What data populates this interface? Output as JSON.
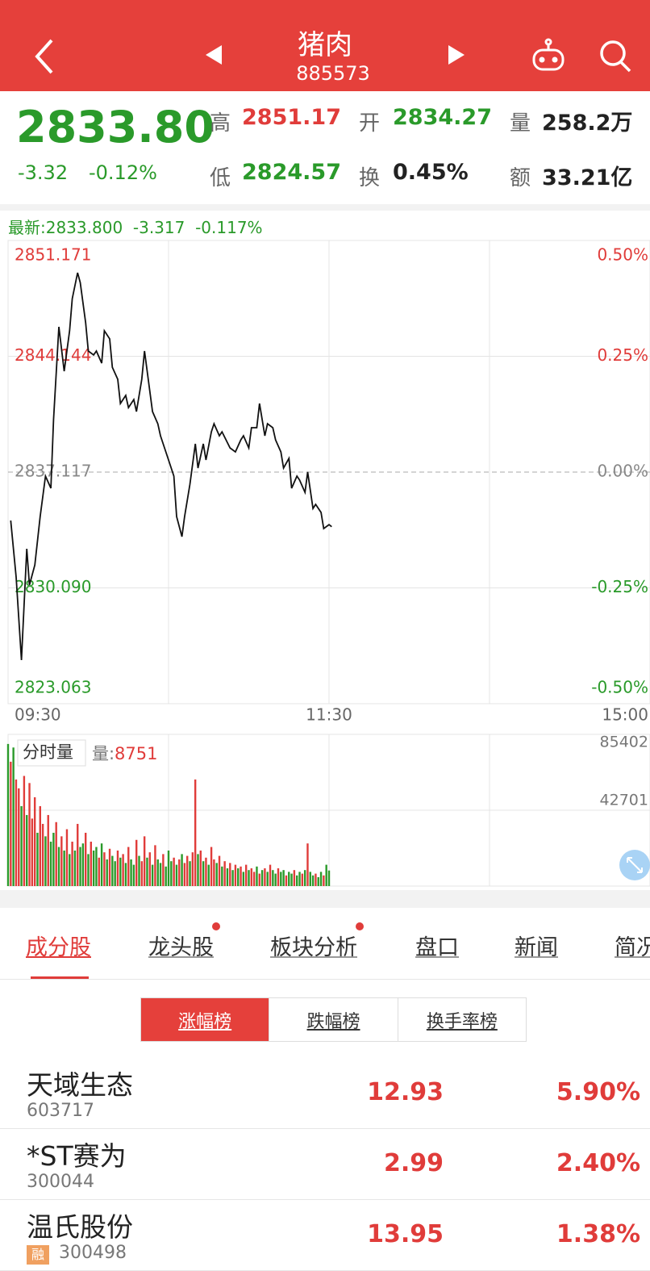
{
  "header": {
    "title": "猪肉",
    "code": "885573"
  },
  "quote": {
    "price": "2833.80",
    "change": "-3.32",
    "change_pct": "-0.12%",
    "fields": [
      {
        "label": "高",
        "value": "2851.17"
      },
      {
        "label": "开",
        "value": "2834.27"
      },
      {
        "label": "量",
        "value": "258.2万"
      },
      {
        "label": "低",
        "value": "2824.57"
      },
      {
        "label": "换",
        "value": "0.45%"
      },
      {
        "label": "额",
        "value": "33.21亿"
      }
    ]
  },
  "chart_data": [
    {
      "type": "line",
      "subtitle": "最新:2833.800  -3.317  -0.117%",
      "color": "#111111",
      "x": [
        1,
        3,
        5,
        7,
        8,
        10,
        12,
        14,
        16,
        17,
        19,
        21,
        23,
        24,
        26,
        27,
        29,
        30,
        32,
        33,
        35,
        36,
        38,
        39,
        41,
        42,
        44,
        45,
        47,
        48,
        50,
        51,
        52,
        54,
        56,
        57,
        60,
        62,
        63,
        65,
        66,
        68,
        70,
        71,
        73,
        74,
        76,
        77,
        79,
        80,
        83,
        85,
        87,
        88,
        90,
        91,
        93,
        94,
        96,
        97,
        99,
        100,
        102,
        103,
        105,
        106,
        108,
        109,
        111,
        112,
        114,
        115,
        117,
        118,
        120,
        121
      ],
      "values": [
        2834.18,
        2830.75,
        2825.71,
        2832.46,
        2830.26,
        2831.48,
        2834.42,
        2836.87,
        2836.14,
        2840.3,
        2845.93,
        2843.24,
        2845.69,
        2847.64,
        2849.21,
        2848.62,
        2846.18,
        2844.46,
        2844.22,
        2844.46,
        2843.73,
        2845.69,
        2845.2,
        2843.48,
        2842.75,
        2841.28,
        2841.77,
        2841.03,
        2841.52,
        2840.79,
        2842.75,
        2844.46,
        2843.24,
        2840.79,
        2840.05,
        2839.32,
        2837.85,
        2836.87,
        2834.42,
        2833.2,
        2834.42,
        2836.38,
        2838.83,
        2837.36,
        2838.83,
        2837.85,
        2839.56,
        2840.05,
        2839.32,
        2839.56,
        2838.58,
        2838.34,
        2839.07,
        2839.32,
        2838.58,
        2839.81,
        2839.81,
        2841.28,
        2839.32,
        2840.05,
        2839.81,
        2839.07,
        2838.34,
        2837.36,
        2837.95,
        2836.14,
        2836.87,
        2836.63,
        2835.89,
        2837.12,
        2834.91,
        2835.16,
        2834.67,
        2833.69,
        2833.93,
        2833.8
      ],
      "xlim": [
        0,
        240
      ],
      "xticks": [
        {
          "value": 0,
          "label": "09:30"
        },
        {
          "value": 120,
          "label": "11:30"
        },
        {
          "value": 240,
          "label": "15:00"
        }
      ],
      "xgrid": [
        60,
        120,
        180
      ],
      "ylim": [
        2823.063,
        2851.171
      ],
      "yticks": [
        2851.171,
        2844.144,
        2837.117,
        {
          "value": 2830.09,
          "label": "2830.090"
        },
        2823.063
      ],
      "y2lim": [
        -0.5,
        0.5
      ],
      "y2ticks": [
        {
          "value": 0.5,
          "label": "0.50%"
        },
        {
          "value": 0.25,
          "label": "0.25%"
        },
        {
          "value": 0,
          "label": "0.00%"
        },
        {
          "value": -0.25,
          "label": "-0.25%"
        },
        {
          "value": -0.5,
          "label": "-0.50%"
        }
      ],
      "up_color": "#e03c3a",
      "down_color": "#2a9a2a",
      "flat_color": "#888888"
    },
    {
      "type": "bar",
      "title": "分时量",
      "volume_label": "量:",
      "x": [
        0,
        1,
        2,
        3,
        4,
        5,
        6,
        7,
        8,
        9,
        10,
        11,
        12,
        13,
        14,
        15,
        16,
        17,
        18,
        19,
        20,
        21,
        22,
        23,
        24,
        25,
        26,
        27,
        28,
        29,
        30,
        31,
        32,
        33,
        34,
        35,
        36,
        37,
        38,
        39,
        40,
        41,
        42,
        43,
        44,
        45,
        46,
        47,
        48,
        49,
        50,
        51,
        52,
        53,
        54,
        55,
        56,
        57,
        58,
        59,
        60,
        61,
        62,
        63,
        64,
        65,
        66,
        67,
        68,
        69,
        70,
        71,
        72,
        73,
        74,
        75,
        76,
        77,
        78,
        79,
        80,
        81,
        82,
        83,
        84,
        85,
        86,
        87,
        88,
        89,
        90,
        91,
        92,
        93,
        94,
        95,
        96,
        97,
        98,
        99,
        100,
        101,
        102,
        103,
        104,
        105,
        106,
        107,
        108,
        109,
        110,
        111,
        112,
        113,
        114,
        115,
        116,
        117,
        118,
        119,
        120
      ],
      "values": [
        80000,
        70000,
        78000,
        60000,
        55000,
        45000,
        62000,
        40000,
        58000,
        38000,
        50000,
        30000,
        45000,
        35000,
        28000,
        40000,
        25000,
        30000,
        36000,
        22000,
        28000,
        20000,
        32000,
        18000,
        25000,
        20000,
        35000,
        22000,
        24000,
        30000,
        18000,
        25000,
        20000,
        22000,
        16000,
        24000,
        19000,
        15000,
        21000,
        17000,
        14000,
        20000,
        16000,
        18000,
        13000,
        22000,
        15000,
        12000,
        26000,
        17000,
        14000,
        28000,
        16000,
        19000,
        12000,
        23000,
        15000,
        13000,
        18000,
        11000,
        20000,
        14000,
        16000,
        12000,
        15000,
        18000,
        13000,
        17000,
        14000,
        19000,
        60000,
        18000,
        20000,
        14000,
        16000,
        12000,
        22000,
        15000,
        13000,
        17000,
        11000,
        14000,
        10000,
        13000,
        9000,
        12000,
        10000,
        11000,
        8000,
        12000,
        9000,
        10000,
        8000,
        11000,
        7000,
        9000,
        10000,
        8000,
        12000,
        9000,
        7000,
        10000,
        8000,
        9000,
        6000,
        8000,
        7000,
        9000,
        6000,
        8000,
        7000,
        9000,
        24000,
        8000,
        6000,
        7000,
        5000,
        8000,
        6000,
        12000,
        8751
      ],
      "colors": [
        "#2a9a2a",
        "#e03c3a",
        "#2a9a2a",
        "#e03c3a",
        "#e03c3a",
        "#2a9a2a",
        "#e03c3a",
        "#2a9a2a",
        "#e03c3a",
        "#e03c3a",
        "#e03c3a",
        "#2a9a2a",
        "#e03c3a",
        "#e03c3a",
        "#2a9a2a",
        "#e03c3a",
        "#2a9a2a",
        "#2a9a2a",
        "#e03c3a",
        "#2a9a2a",
        "#e03c3a",
        "#2a9a2a",
        "#e03c3a",
        "#2a9a2a",
        "#e03c3a",
        "#2a9a2a",
        "#e03c3a",
        "#2a9a2a",
        "#2a9a2a",
        "#e03c3a",
        "#2a9a2a",
        "#e03c3a",
        "#2a9a2a",
        "#2a9a2a",
        "#e03c3a",
        "#2a9a2a",
        "#e03c3a",
        "#2a9a2a",
        "#e03c3a",
        "#2a9a2a",
        "#2a9a2a",
        "#e03c3a",
        "#2a9a2a",
        "#e03c3a",
        "#2a9a2a",
        "#e03c3a",
        "#2a9a2a",
        "#2a9a2a",
        "#e03c3a",
        "#2a9a2a",
        "#e03c3a",
        "#e03c3a",
        "#2a9a2a",
        "#e03c3a",
        "#2a9a2a",
        "#e03c3a",
        "#2a9a2a",
        "#2a9a2a",
        "#e03c3a",
        "#2a9a2a",
        "#2a9a2a",
        "#2a9a2a",
        "#e03c3a",
        "#2a9a2a",
        "#e03c3a",
        "#2a9a2a",
        "#e03c3a",
        "#e03c3a",
        "#2a9a2a",
        "#e03c3a",
        "#e03c3a",
        "#2a9a2a",
        "#e03c3a",
        "#2a9a2a",
        "#e03c3a",
        "#2a9a2a",
        "#e03c3a",
        "#e03c3a",
        "#2a9a2a",
        "#e03c3a",
        "#2a9a2a",
        "#e03c3a",
        "#2a9a2a",
        "#e03c3a",
        "#2a9a2a",
        "#e03c3a",
        "#2a9a2a",
        "#e03c3a",
        "#2a9a2a",
        "#e03c3a",
        "#2a9a2a",
        "#e03c3a",
        "#e03c3a",
        "#2a9a2a",
        "#e03c3a",
        "#2a9a2a",
        "#e03c3a",
        "#2a9a2a",
        "#e03c3a",
        "#2a9a2a",
        "#2a9a2a",
        "#e03c3a",
        "#2a9a2a",
        "#2a9a2a",
        "#e03c3a",
        "#2a9a2a",
        "#2a9a2a",
        "#e03c3a",
        "#2a9a2a",
        "#2a9a2a",
        "#e03c3a",
        "#2a9a2a",
        "#e03c3a",
        "#2a9a2a",
        "#2a9a2a",
        "#e03c3a",
        "#2a9a2a",
        "#2a9a2a",
        "#e03c3a",
        "#2a9a2a",
        "#2a9a2a"
      ],
      "xlim": [
        0,
        240
      ],
      "xgrid": [
        60,
        120,
        180
      ],
      "ylim": [
        0,
        85402
      ],
      "yticks": [
        42701,
        85402
      ]
    }
  ],
  "tabs": [
    {
      "label": "成分股",
      "active": true,
      "dot": false
    },
    {
      "label": "龙头股",
      "active": false,
      "dot": true
    },
    {
      "label": "板块分析",
      "active": false,
      "dot": true
    },
    {
      "label": "盘口",
      "active": false,
      "dot": false
    },
    {
      "label": "新闻",
      "active": false,
      "dot": false
    },
    {
      "label": "简况",
      "active": false,
      "dot": false
    }
  ],
  "ranking": {
    "options": [
      "涨幅榜",
      "跌幅榜",
      "换手率榜"
    ],
    "selected": 0
  },
  "stocks": [
    {
      "name": "天域生态",
      "code": "603717",
      "badge": null,
      "price": "12.93",
      "change": "5.90%"
    },
    {
      "name": "*ST赛为",
      "code": "300044",
      "badge": null,
      "price": "2.99",
      "change": "2.40%"
    },
    {
      "name": "温氏股份",
      "code": "300498",
      "badge": "融",
      "price": "13.95",
      "change": "1.38%"
    }
  ]
}
